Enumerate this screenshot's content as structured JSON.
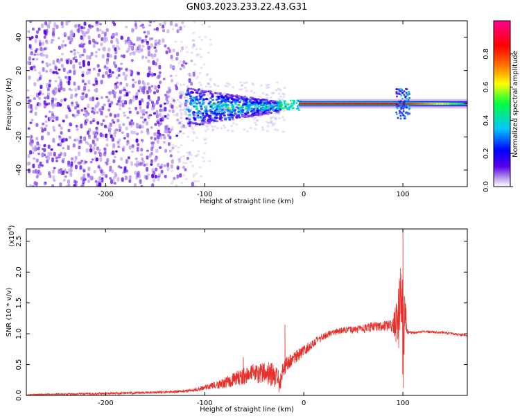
{
  "title": "GN03.2023.233.22.43.G31",
  "chart_data": [
    {
      "type": "heatmap",
      "name": "spectrogram",
      "xlabel": "Height of straight line (km)",
      "ylabel": "Frequency (Hz)",
      "xlim": [
        -280,
        165
      ],
      "ylim": [
        -50,
        50
      ],
      "xticks": [
        -200,
        -100,
        0,
        100
      ],
      "yticks": [
        -40,
        -20,
        0,
        20,
        40
      ],
      "colorbar": {
        "label": "Normalized spectral amplitude",
        "range": [
          0,
          1
        ],
        "ticks": [
          0.0,
          0.2,
          0.4,
          0.6,
          0.8
        ],
        "tick_labels": [
          "0.0",
          "0.2",
          "0.4",
          "0.6",
          "0.8"
        ],
        "colors": [
          "#ffffff",
          "#5a00e6",
          "#0000ff",
          "#00c8ff",
          "#00ff40",
          "#ffff00",
          "#ff8000",
          "#ff0000",
          "#ff0090"
        ]
      },
      "features": [
        {
          "desc": "dense scattered purple noise",
          "x_range": [
            -280,
            -120
          ],
          "freq_range": [
            -50,
            50
          ],
          "amplitude": 0.1
        },
        {
          "desc": "narrowing signal band",
          "x_range": [
            -120,
            -25
          ],
          "freq_range": [
            -10,
            5
          ],
          "amplitude": 0.3
        },
        {
          "desc": "strong carrier line",
          "x_range": [
            -5,
            100
          ],
          "freq": 0,
          "amplitude": 0.85
        },
        {
          "desc": "fading carrier line",
          "x_range": [
            100,
            165
          ],
          "freq": 0,
          "amplitude": 0.45
        }
      ]
    },
    {
      "type": "line",
      "name": "snr",
      "xlabel": "Height of straight line (km)",
      "ylabel": "SNR (10 * v/v)",
      "yscale_note": "(x10",
      "yscale_exp": "4",
      "color": "#e8302a",
      "xlim": [
        -280,
        165
      ],
      "ylim": [
        0,
        2.7
      ],
      "xticks": [
        -200,
        -100,
        0,
        100
      ],
      "yticks": [
        0.0,
        0.5,
        1.0,
        1.5,
        2.0,
        2.5
      ],
      "ytick_labels": [
        "0.0",
        "0.5",
        "1.0",
        "1.5",
        "2.0",
        "2.5"
      ],
      "x": [
        -280,
        -250,
        -200,
        -150,
        -130,
        -120,
        -110,
        -100,
        -90,
        -80,
        -70,
        -60,
        -50,
        -40,
        -30,
        -25,
        -20,
        -15,
        -10,
        0,
        10,
        20,
        30,
        40,
        50,
        60,
        70,
        80,
        90,
        95,
        98,
        100,
        102,
        105,
        110,
        120,
        130,
        140,
        150,
        165
      ],
      "y": [
        0.01,
        0.02,
        0.03,
        0.05,
        0.06,
        0.07,
        0.09,
        0.13,
        0.16,
        0.2,
        0.26,
        0.32,
        0.35,
        0.38,
        0.3,
        0.2,
        0.45,
        0.55,
        0.6,
        0.72,
        0.85,
        0.96,
        1.03,
        1.06,
        1.06,
        1.08,
        1.12,
        1.12,
        1.13,
        1.25,
        1.5,
        1.05,
        1.3,
        1.02,
        1.02,
        1.03,
        1.03,
        1.02,
        1.0,
        0.97
      ],
      "noise": [
        0.01,
        0.01,
        0.02,
        0.02,
        0.02,
        0.02,
        0.03,
        0.04,
        0.06,
        0.09,
        0.12,
        0.14,
        0.16,
        0.18,
        0.22,
        0.2,
        0.14,
        0.12,
        0.1,
        0.09,
        0.07,
        0.06,
        0.05,
        0.05,
        0.06,
        0.07,
        0.08,
        0.08,
        0.1,
        0.5,
        0.8,
        0.8,
        0.4,
        0.03,
        0.02,
        0.02,
        0.02,
        0.02,
        0.02,
        0.02
      ],
      "spikes": [
        {
          "x": -61,
          "y": 0.62
        },
        {
          "x": -19,
          "y": 1.15
        },
        {
          "x": 100,
          "y": 2.7
        },
        {
          "x": 100.4,
          "y": 0.12
        }
      ]
    }
  ]
}
